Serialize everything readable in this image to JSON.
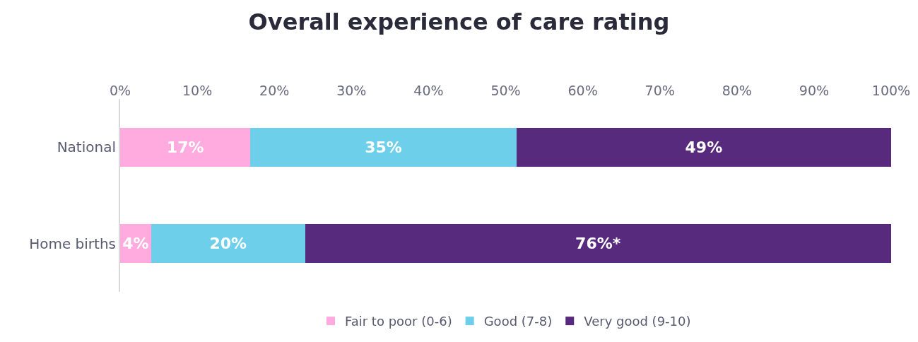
{
  "chart_data": {
    "type": "bar",
    "title": "Overall experience of care rating",
    "orientation": "horizontal",
    "stacked": true,
    "categories": [
      "National",
      "Home births"
    ],
    "series": [
      {
        "name": "Fair to poor (0-6)",
        "color": "#ffabe0",
        "values": [
          16.9,
          4.0
        ],
        "value_labels": [
          "17%",
          "4%"
        ]
      },
      {
        "name": "Good (7-8)",
        "color": "#6dcfea",
        "values": [
          34.5,
          20.0
        ],
        "value_labels": [
          "35%",
          "20%"
        ]
      },
      {
        "name": "Very good (9-10)",
        "color": "#582a7d",
        "values": [
          48.6,
          76.0
        ],
        "value_labels": [
          "49%",
          "76%*"
        ]
      }
    ],
    "xlim": [
      0,
      100
    ],
    "xticks": [
      {
        "value": 0,
        "label": "0%"
      },
      {
        "value": 10,
        "label": "10%"
      },
      {
        "value": 20,
        "label": "20%"
      },
      {
        "value": 30,
        "label": "30%"
      },
      {
        "value": 40,
        "label": "40%"
      },
      {
        "value": 50,
        "label": "50%"
      },
      {
        "value": 60,
        "label": "60%"
      },
      {
        "value": 70,
        "label": "70%"
      },
      {
        "value": 80,
        "label": "80%"
      },
      {
        "value": 90,
        "label": "90%"
      },
      {
        "value": 100,
        "label": "100%"
      }
    ],
    "legend": "bottom"
  }
}
